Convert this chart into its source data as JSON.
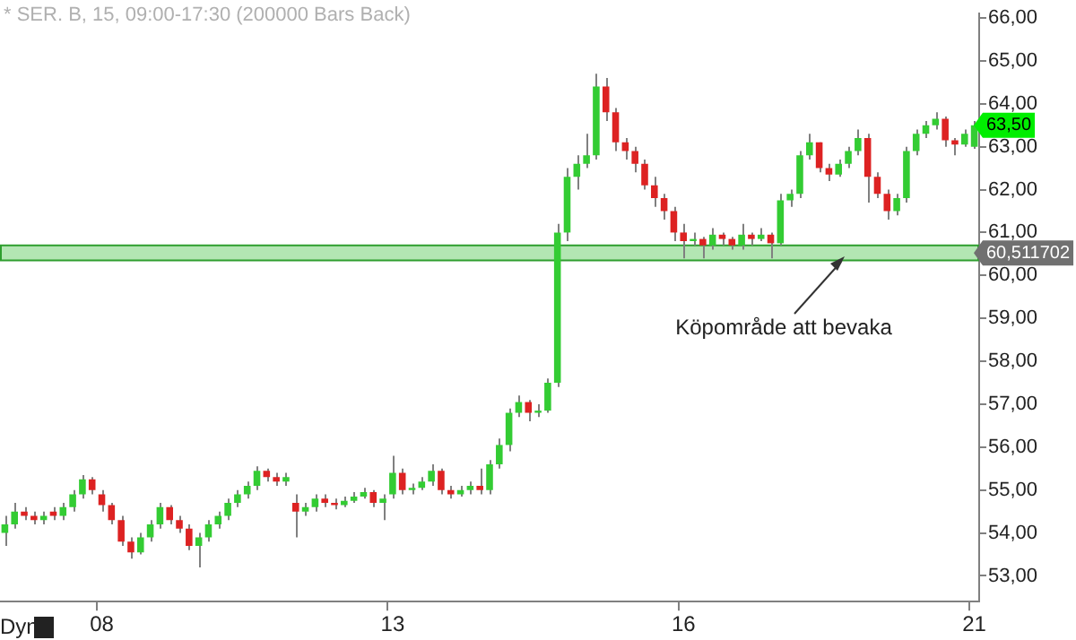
{
  "chart_data": {
    "type": "candlestick",
    "title": "* SER. B, 15, 09:00-17:30 (200000 Bars Back)",
    "categories": [
      null,
      null,
      null,
      null,
      null,
      null,
      null,
      null,
      null,
      null,
      "08",
      null,
      null,
      null,
      null,
      null,
      null,
      null,
      null,
      null,
      null,
      null,
      null,
      null,
      null,
      null,
      null,
      null,
      null,
      null,
      null,
      null,
      null,
      null,
      null,
      null,
      null,
      null,
      null,
      null,
      "13",
      null,
      null,
      null,
      null,
      null,
      null,
      null,
      null,
      null,
      null,
      null,
      null,
      null,
      null,
      null,
      null,
      null,
      null,
      null,
      null,
      null,
      null,
      null,
      null,
      null,
      null,
      null,
      null,
      null,
      "16",
      null,
      null,
      null,
      null,
      null,
      null,
      null,
      null,
      null,
      null,
      null,
      null,
      null,
      null,
      null,
      null,
      null,
      null,
      null,
      null,
      null,
      null,
      null,
      null,
      null,
      null,
      null,
      null,
      null,
      "21"
    ],
    "ohlc": [
      [
        54.0,
        54.4,
        53.7,
        54.2
      ],
      [
        54.2,
        54.7,
        54.1,
        54.5
      ],
      [
        54.5,
        54.6,
        54.3,
        54.4
      ],
      [
        54.4,
        54.5,
        54.2,
        54.3
      ],
      [
        54.3,
        54.5,
        54.2,
        54.4
      ],
      [
        54.5,
        54.6,
        54.3,
        54.4
      ],
      [
        54.4,
        54.7,
        54.3,
        54.6
      ],
      [
        54.6,
        55.0,
        54.5,
        54.9
      ],
      [
        54.9,
        55.35,
        54.8,
        55.25
      ],
      [
        55.25,
        55.3,
        54.9,
        55.0
      ],
      [
        54.9,
        55.0,
        54.5,
        54.65
      ],
      [
        54.65,
        54.7,
        54.2,
        54.3
      ],
      [
        54.3,
        54.4,
        53.7,
        53.8
      ],
      [
        53.8,
        53.9,
        53.4,
        53.55
      ],
      [
        53.55,
        54.0,
        53.5,
        53.9
      ],
      [
        53.9,
        54.3,
        53.8,
        54.2
      ],
      [
        54.2,
        54.7,
        54.1,
        54.6
      ],
      [
        54.6,
        54.65,
        54.2,
        54.3
      ],
      [
        54.3,
        54.4,
        54.0,
        54.1
      ],
      [
        54.1,
        54.2,
        53.6,
        53.7
      ],
      [
        53.7,
        54.0,
        53.2,
        53.9
      ],
      [
        53.9,
        54.3,
        53.8,
        54.2
      ],
      [
        54.2,
        54.5,
        54.1,
        54.4
      ],
      [
        54.4,
        54.8,
        54.3,
        54.7
      ],
      [
        54.7,
        55.0,
        54.6,
        54.9
      ],
      [
        54.9,
        55.2,
        54.8,
        55.1
      ],
      [
        55.1,
        55.55,
        55.0,
        55.45
      ],
      [
        55.45,
        55.5,
        55.2,
        55.3
      ],
      [
        55.3,
        55.4,
        55.1,
        55.2
      ],
      [
        55.2,
        55.4,
        55.1,
        55.3
      ],
      [
        54.7,
        54.9,
        53.9,
        54.5
      ],
      [
        54.5,
        54.7,
        54.4,
        54.6
      ],
      [
        54.6,
        54.9,
        54.5,
        54.8
      ],
      [
        54.8,
        54.9,
        54.6,
        54.7
      ],
      [
        54.7,
        54.8,
        54.55,
        54.65
      ],
      [
        54.65,
        54.85,
        54.6,
        54.75
      ],
      [
        54.75,
        54.95,
        54.7,
        54.85
      ],
      [
        54.85,
        55.05,
        54.8,
        54.95
      ],
      [
        54.95,
        55.0,
        54.6,
        54.7
      ],
      [
        54.7,
        54.9,
        54.3,
        54.8
      ],
      [
        54.9,
        55.8,
        54.8,
        55.4
      ],
      [
        55.4,
        55.5,
        54.9,
        55.0
      ],
      [
        55.0,
        55.15,
        54.9,
        55.05
      ],
      [
        55.05,
        55.3,
        55.0,
        55.2
      ],
      [
        55.2,
        55.6,
        55.1,
        55.45
      ],
      [
        55.45,
        55.5,
        54.9,
        55.0
      ],
      [
        55.0,
        55.1,
        54.8,
        54.9
      ],
      [
        54.9,
        55.1,
        54.85,
        55.0
      ],
      [
        55.0,
        55.2,
        54.9,
        55.1
      ],
      [
        55.1,
        55.5,
        54.9,
        55.0
      ],
      [
        55.0,
        55.7,
        54.9,
        55.6
      ],
      [
        55.6,
        56.2,
        55.5,
        56.05
      ],
      [
        56.05,
        56.9,
        55.9,
        56.8
      ],
      [
        56.8,
        57.2,
        56.7,
        57.05
      ],
      [
        57.05,
        57.1,
        56.6,
        56.8
      ],
      [
        56.8,
        57.0,
        56.7,
        56.85
      ],
      [
        56.85,
        57.6,
        56.8,
        57.5
      ],
      [
        57.5,
        61.2,
        57.4,
        61.0
      ],
      [
        61.0,
        62.5,
        60.8,
        62.3
      ],
      [
        62.3,
        62.8,
        62.0,
        62.6
      ],
      [
        62.6,
        63.3,
        62.5,
        62.8
      ],
      [
        62.8,
        64.7,
        62.7,
        64.4
      ],
      [
        64.4,
        64.6,
        63.6,
        63.8
      ],
      [
        63.8,
        63.9,
        62.9,
        63.1
      ],
      [
        63.1,
        63.2,
        62.7,
        62.9
      ],
      [
        62.9,
        63.0,
        62.4,
        62.6
      ],
      [
        62.6,
        62.7,
        62.0,
        62.1
      ],
      [
        62.1,
        62.3,
        61.6,
        61.8
      ],
      [
        61.8,
        61.9,
        61.3,
        61.5
      ],
      [
        61.5,
        61.6,
        60.8,
        61.0
      ],
      [
        61.0,
        61.2,
        60.4,
        60.8
      ],
      [
        60.8,
        61.0,
        60.7,
        60.85
      ],
      [
        60.85,
        60.9,
        60.4,
        60.7
      ],
      [
        60.7,
        61.1,
        60.6,
        60.95
      ],
      [
        60.95,
        61.0,
        60.7,
        60.85
      ],
      [
        60.85,
        60.9,
        60.6,
        60.7
      ],
      [
        60.7,
        61.2,
        60.6,
        60.95
      ],
      [
        60.95,
        61.0,
        60.7,
        60.85
      ],
      [
        60.85,
        61.1,
        60.8,
        60.95
      ],
      [
        60.95,
        61.0,
        60.4,
        60.75
      ],
      [
        60.75,
        61.9,
        60.7,
        61.75
      ],
      [
        61.75,
        62.0,
        61.6,
        61.9
      ],
      [
        61.9,
        62.9,
        61.8,
        62.8
      ],
      [
        62.8,
        63.3,
        62.7,
        63.1
      ],
      [
        63.1,
        63.1,
        62.4,
        62.5
      ],
      [
        62.5,
        62.6,
        62.2,
        62.35
      ],
      [
        62.35,
        62.7,
        62.3,
        62.6
      ],
      [
        62.6,
        63.0,
        62.5,
        62.9
      ],
      [
        62.9,
        63.4,
        62.8,
        63.2
      ],
      [
        63.2,
        63.3,
        61.7,
        62.3
      ],
      [
        62.3,
        62.4,
        61.8,
        61.9
      ],
      [
        61.9,
        62.0,
        61.3,
        61.5
      ],
      [
        61.5,
        61.9,
        61.4,
        61.8
      ],
      [
        61.8,
        63.0,
        61.7,
        62.9
      ],
      [
        62.9,
        63.4,
        62.8,
        63.3
      ],
      [
        63.3,
        63.6,
        63.2,
        63.5
      ],
      [
        63.5,
        63.8,
        63.4,
        63.65
      ],
      [
        63.65,
        63.7,
        63.0,
        63.15
      ],
      [
        63.15,
        63.2,
        62.8,
        63.05
      ],
      [
        63.05,
        63.4,
        63.0,
        63.3
      ],
      [
        63.0,
        63.6,
        62.95,
        63.5
      ]
    ],
    "ylim": [
      52.4,
      66.1
    ],
    "yticks": [
      {
        "value": 53,
        "label": "53,00"
      },
      {
        "value": 54,
        "label": "54,00"
      },
      {
        "value": 55,
        "label": "55,00"
      },
      {
        "value": 56,
        "label": "56,00"
      },
      {
        "value": 57,
        "label": "57,00"
      },
      {
        "value": 58,
        "label": "58,00"
      },
      {
        "value": 59,
        "label": "59,00"
      },
      {
        "value": 60,
        "label": "60,00"
      },
      {
        "value": 61,
        "label": "61,00"
      },
      {
        "value": 62,
        "label": "62,00"
      },
      {
        "value": 63,
        "label": "63,00"
      },
      {
        "value": 64,
        "label": "64,00"
      },
      {
        "value": 65,
        "label": "65,00"
      },
      {
        "value": 66,
        "label": "66,00"
      }
    ],
    "bands": [
      {
        "axis": "y",
        "from": 60.35,
        "to": 60.7,
        "label": "60,511702",
        "color": "#b3e6b3"
      }
    ],
    "annotations": [
      {
        "text": "63,50",
        "x": "21",
        "y": 63.5
      },
      "Köpområde att bevaka",
      "Dyn"
    ],
    "grid": false,
    "legend": false
  }
}
